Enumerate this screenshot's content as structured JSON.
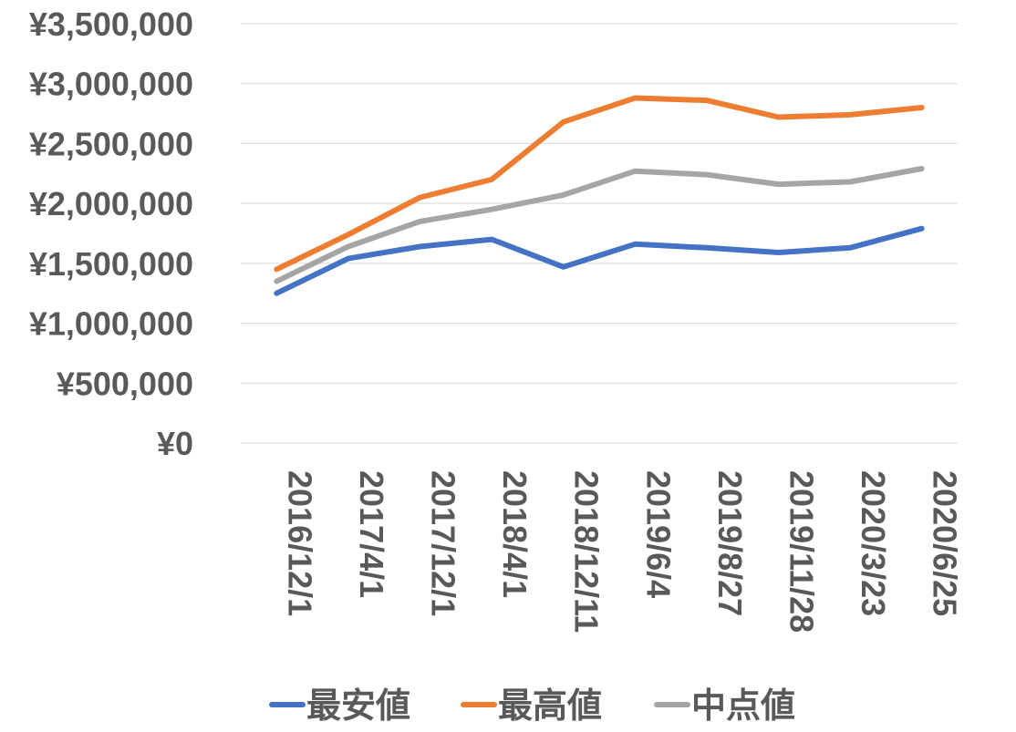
{
  "chart_data": {
    "type": "line",
    "title": "",
    "xlabel": "",
    "ylabel": "",
    "categories": [
      "2016/12/1",
      "2017/4/1",
      "2017/12/1",
      "2018/4/1",
      "2018/12/11",
      "2019/6/4",
      "2019/8/27",
      "2019/11/28",
      "2020/3/23",
      "2020/6/25"
    ],
    "y_ticks": [
      "¥0",
      "¥500,000",
      "¥1,000,000",
      "¥1,500,000",
      "¥2,000,000",
      "¥2,500,000",
      "¥3,000,000",
      "¥3,500,000"
    ],
    "ylim": [
      0,
      3500000
    ],
    "grid": true,
    "legend_position": "bottom",
    "series": [
      {
        "name": "最安値",
        "color": "#4472C4",
        "values": [
          1250000,
          1540000,
          1640000,
          1700000,
          1470000,
          1660000,
          1630000,
          1590000,
          1630000,
          1790000
        ]
      },
      {
        "name": "最高値",
        "color": "#ED7D31",
        "values": [
          1450000,
          1740000,
          2050000,
          2200000,
          2680000,
          2880000,
          2860000,
          2720000,
          2740000,
          2800000
        ]
      },
      {
        "name": "中点値",
        "color": "#A5A5A5",
        "values": [
          1350000,
          1640000,
          1850000,
          1950000,
          2070000,
          2270000,
          2240000,
          2160000,
          2180000,
          2290000
        ]
      }
    ]
  }
}
